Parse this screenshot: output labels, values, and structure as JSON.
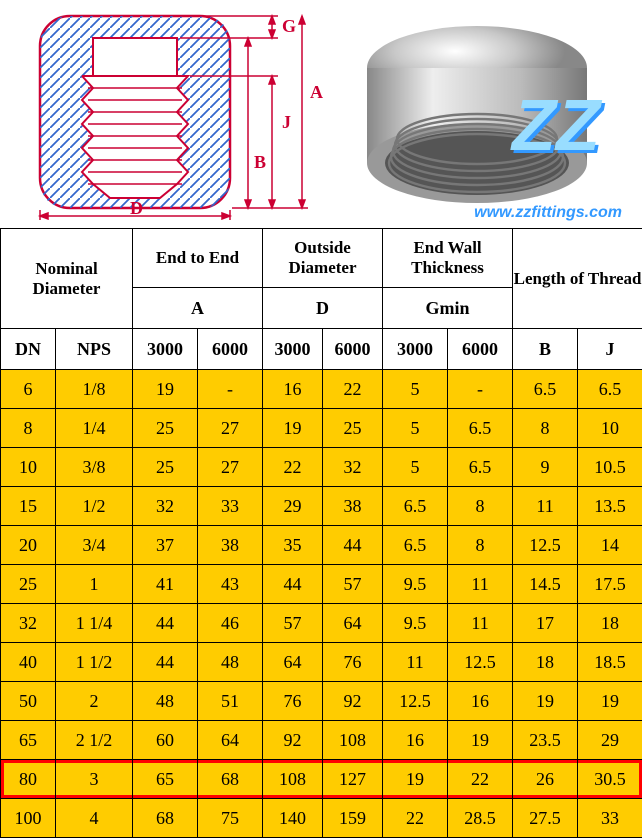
{
  "url": "www.zzfittings.com",
  "diagram": {
    "labels": [
      "G",
      "A",
      "J",
      "B",
      "D"
    ],
    "outline_color": "#cc0033",
    "hatch_color": "#3366cc",
    "bg_color": "#ffffff"
  },
  "photo": {
    "logo_text": "ZZ",
    "logo_color": "#3399ff"
  },
  "table": {
    "header_bg": "#ffffff",
    "body_bg": "#ffcc00",
    "border_color": "#000000",
    "highlight_color": "#ff0000",
    "highlighted_row_index": 11,
    "header_groups": [
      "Nominal Diameter",
      "End to End",
      "Outside Diameter",
      "End Wall Thickness",
      "Length of Thread"
    ],
    "header_mid": [
      "A",
      "D",
      "Gmin"
    ],
    "header_cols": [
      "DN",
      "NPS",
      "3000",
      "6000",
      "3000",
      "6000",
      "3000",
      "6000",
      "B",
      "J"
    ],
    "rows": [
      [
        "6",
        "1/8",
        "19",
        "-",
        "16",
        "22",
        "5",
        "-",
        "6.5",
        "6.5"
      ],
      [
        "8",
        "1/4",
        "25",
        "27",
        "19",
        "25",
        "5",
        "6.5",
        "8",
        "10"
      ],
      [
        "10",
        "3/8",
        "25",
        "27",
        "22",
        "32",
        "5",
        "6.5",
        "9",
        "10.5"
      ],
      [
        "15",
        "1/2",
        "32",
        "33",
        "29",
        "38",
        "6.5",
        "8",
        "11",
        "13.5"
      ],
      [
        "20",
        "3/4",
        "37",
        "38",
        "35",
        "44",
        "6.5",
        "8",
        "12.5",
        "14"
      ],
      [
        "25",
        "1",
        "41",
        "43",
        "44",
        "57",
        "9.5",
        "11",
        "14.5",
        "17.5"
      ],
      [
        "32",
        "1 1/4",
        "44",
        "46",
        "57",
        "64",
        "9.5",
        "11",
        "17",
        "18"
      ],
      [
        "40",
        "1 1/2",
        "44",
        "48",
        "64",
        "76",
        "11",
        "12.5",
        "18",
        "18.5"
      ],
      [
        "50",
        "2",
        "48",
        "51",
        "76",
        "92",
        "12.5",
        "16",
        "19",
        "19"
      ],
      [
        "65",
        "2 1/2",
        "60",
        "64",
        "92",
        "108",
        "16",
        "19",
        "23.5",
        "29"
      ],
      [
        "80",
        "3",
        "65",
        "68",
        "108",
        "127",
        "19",
        "22",
        "26",
        "30.5"
      ],
      [
        "100",
        "4",
        "68",
        "75",
        "140",
        "159",
        "22",
        "28.5",
        "27.5",
        "33"
      ]
    ]
  }
}
